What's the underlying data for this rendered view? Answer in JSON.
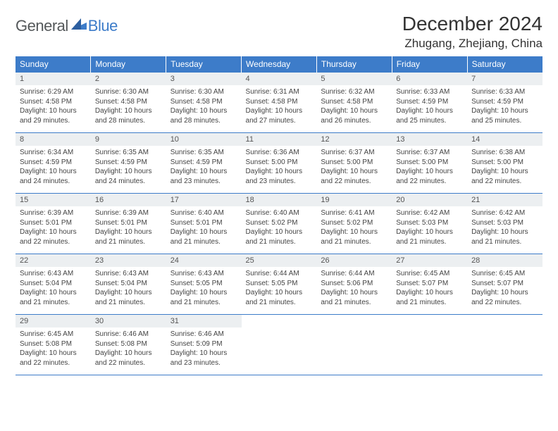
{
  "logo": {
    "general": "General",
    "blue": "Blue",
    "mark_color": "#3d7cc9"
  },
  "title": "December 2024",
  "location": "Zhugang, Zhejiang, China",
  "header_bg": "#3d7cc9",
  "header_text_color": "#ffffff",
  "daynum_bg": "#eceff1",
  "border_color": "#3d7cc9",
  "body_text_color": "#444444",
  "font_family": "Arial",
  "page_bg": "#ffffff",
  "days_of_week": [
    "Sunday",
    "Monday",
    "Tuesday",
    "Wednesday",
    "Thursday",
    "Friday",
    "Saturday"
  ],
  "weeks": [
    [
      {
        "n": "1",
        "sr": "Sunrise: 6:29 AM",
        "ss": "Sunset: 4:58 PM",
        "dl1": "Daylight: 10 hours",
        "dl2": "and 29 minutes."
      },
      {
        "n": "2",
        "sr": "Sunrise: 6:30 AM",
        "ss": "Sunset: 4:58 PM",
        "dl1": "Daylight: 10 hours",
        "dl2": "and 28 minutes."
      },
      {
        "n": "3",
        "sr": "Sunrise: 6:30 AM",
        "ss": "Sunset: 4:58 PM",
        "dl1": "Daylight: 10 hours",
        "dl2": "and 28 minutes."
      },
      {
        "n": "4",
        "sr": "Sunrise: 6:31 AM",
        "ss": "Sunset: 4:58 PM",
        "dl1": "Daylight: 10 hours",
        "dl2": "and 27 minutes."
      },
      {
        "n": "5",
        "sr": "Sunrise: 6:32 AM",
        "ss": "Sunset: 4:58 PM",
        "dl1": "Daylight: 10 hours",
        "dl2": "and 26 minutes."
      },
      {
        "n": "6",
        "sr": "Sunrise: 6:33 AM",
        "ss": "Sunset: 4:59 PM",
        "dl1": "Daylight: 10 hours",
        "dl2": "and 25 minutes."
      },
      {
        "n": "7",
        "sr": "Sunrise: 6:33 AM",
        "ss": "Sunset: 4:59 PM",
        "dl1": "Daylight: 10 hours",
        "dl2": "and 25 minutes."
      }
    ],
    [
      {
        "n": "8",
        "sr": "Sunrise: 6:34 AM",
        "ss": "Sunset: 4:59 PM",
        "dl1": "Daylight: 10 hours",
        "dl2": "and 24 minutes."
      },
      {
        "n": "9",
        "sr": "Sunrise: 6:35 AM",
        "ss": "Sunset: 4:59 PM",
        "dl1": "Daylight: 10 hours",
        "dl2": "and 24 minutes."
      },
      {
        "n": "10",
        "sr": "Sunrise: 6:35 AM",
        "ss": "Sunset: 4:59 PM",
        "dl1": "Daylight: 10 hours",
        "dl2": "and 23 minutes."
      },
      {
        "n": "11",
        "sr": "Sunrise: 6:36 AM",
        "ss": "Sunset: 5:00 PM",
        "dl1": "Daylight: 10 hours",
        "dl2": "and 23 minutes."
      },
      {
        "n": "12",
        "sr": "Sunrise: 6:37 AM",
        "ss": "Sunset: 5:00 PM",
        "dl1": "Daylight: 10 hours",
        "dl2": "and 22 minutes."
      },
      {
        "n": "13",
        "sr": "Sunrise: 6:37 AM",
        "ss": "Sunset: 5:00 PM",
        "dl1": "Daylight: 10 hours",
        "dl2": "and 22 minutes."
      },
      {
        "n": "14",
        "sr": "Sunrise: 6:38 AM",
        "ss": "Sunset: 5:00 PM",
        "dl1": "Daylight: 10 hours",
        "dl2": "and 22 minutes."
      }
    ],
    [
      {
        "n": "15",
        "sr": "Sunrise: 6:39 AM",
        "ss": "Sunset: 5:01 PM",
        "dl1": "Daylight: 10 hours",
        "dl2": "and 22 minutes."
      },
      {
        "n": "16",
        "sr": "Sunrise: 6:39 AM",
        "ss": "Sunset: 5:01 PM",
        "dl1": "Daylight: 10 hours",
        "dl2": "and 21 minutes."
      },
      {
        "n": "17",
        "sr": "Sunrise: 6:40 AM",
        "ss": "Sunset: 5:01 PM",
        "dl1": "Daylight: 10 hours",
        "dl2": "and 21 minutes."
      },
      {
        "n": "18",
        "sr": "Sunrise: 6:40 AM",
        "ss": "Sunset: 5:02 PM",
        "dl1": "Daylight: 10 hours",
        "dl2": "and 21 minutes."
      },
      {
        "n": "19",
        "sr": "Sunrise: 6:41 AM",
        "ss": "Sunset: 5:02 PM",
        "dl1": "Daylight: 10 hours",
        "dl2": "and 21 minutes."
      },
      {
        "n": "20",
        "sr": "Sunrise: 6:42 AM",
        "ss": "Sunset: 5:03 PM",
        "dl1": "Daylight: 10 hours",
        "dl2": "and 21 minutes."
      },
      {
        "n": "21",
        "sr": "Sunrise: 6:42 AM",
        "ss": "Sunset: 5:03 PM",
        "dl1": "Daylight: 10 hours",
        "dl2": "and 21 minutes."
      }
    ],
    [
      {
        "n": "22",
        "sr": "Sunrise: 6:43 AM",
        "ss": "Sunset: 5:04 PM",
        "dl1": "Daylight: 10 hours",
        "dl2": "and 21 minutes."
      },
      {
        "n": "23",
        "sr": "Sunrise: 6:43 AM",
        "ss": "Sunset: 5:04 PM",
        "dl1": "Daylight: 10 hours",
        "dl2": "and 21 minutes."
      },
      {
        "n": "24",
        "sr": "Sunrise: 6:43 AM",
        "ss": "Sunset: 5:05 PM",
        "dl1": "Daylight: 10 hours",
        "dl2": "and 21 minutes."
      },
      {
        "n": "25",
        "sr": "Sunrise: 6:44 AM",
        "ss": "Sunset: 5:05 PM",
        "dl1": "Daylight: 10 hours",
        "dl2": "and 21 minutes."
      },
      {
        "n": "26",
        "sr": "Sunrise: 6:44 AM",
        "ss": "Sunset: 5:06 PM",
        "dl1": "Daylight: 10 hours",
        "dl2": "and 21 minutes."
      },
      {
        "n": "27",
        "sr": "Sunrise: 6:45 AM",
        "ss": "Sunset: 5:07 PM",
        "dl1": "Daylight: 10 hours",
        "dl2": "and 21 minutes."
      },
      {
        "n": "28",
        "sr": "Sunrise: 6:45 AM",
        "ss": "Sunset: 5:07 PM",
        "dl1": "Daylight: 10 hours",
        "dl2": "and 22 minutes."
      }
    ],
    [
      {
        "n": "29",
        "sr": "Sunrise: 6:45 AM",
        "ss": "Sunset: 5:08 PM",
        "dl1": "Daylight: 10 hours",
        "dl2": "and 22 minutes."
      },
      {
        "n": "30",
        "sr": "Sunrise: 6:46 AM",
        "ss": "Sunset: 5:08 PM",
        "dl1": "Daylight: 10 hours",
        "dl2": "and 22 minutes."
      },
      {
        "n": "31",
        "sr": "Sunrise: 6:46 AM",
        "ss": "Sunset: 5:09 PM",
        "dl1": "Daylight: 10 hours",
        "dl2": "and 23 minutes."
      },
      null,
      null,
      null,
      null
    ]
  ]
}
